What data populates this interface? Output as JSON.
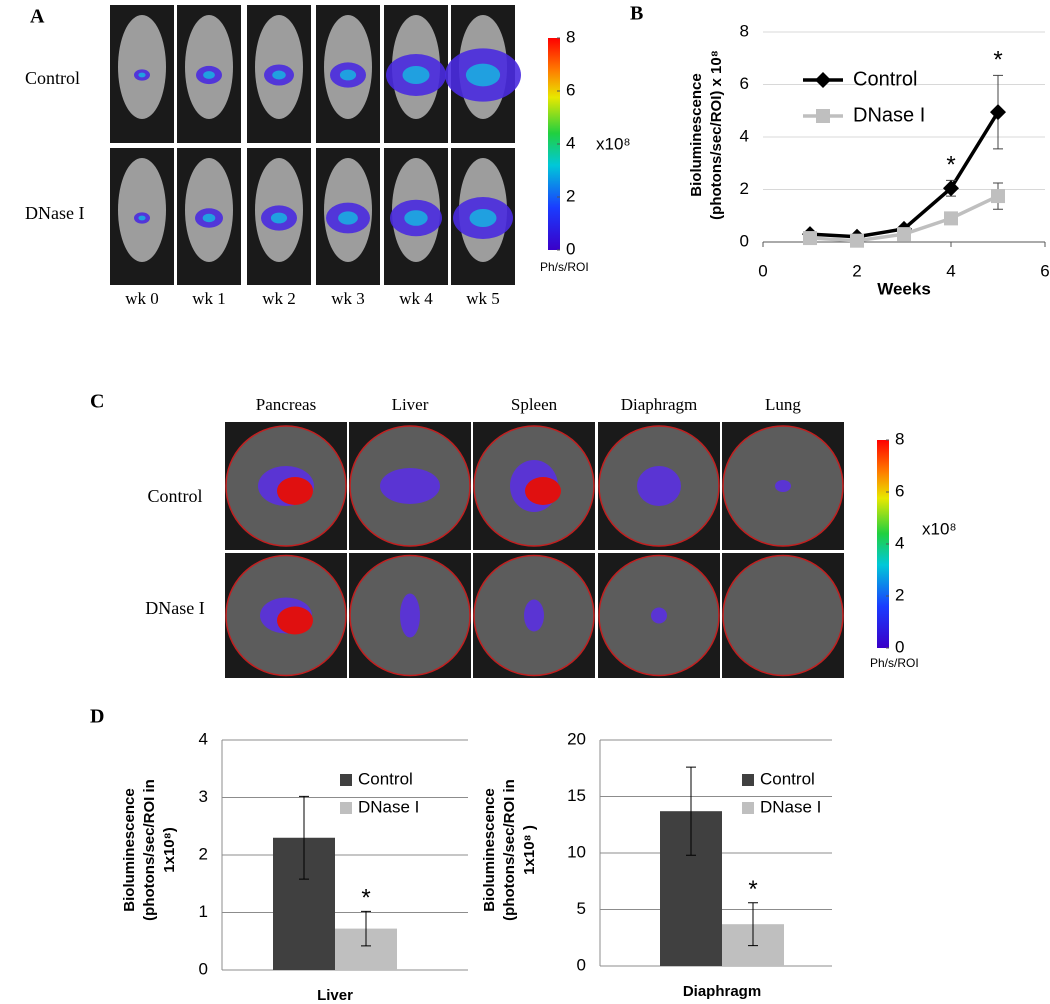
{
  "panels": {
    "A": {
      "label": "A",
      "rows": [
        "Control",
        "DNase I"
      ],
      "columns": [
        "wk 0",
        "wk 1",
        "wk 2",
        "wk 3",
        "wk 4",
        "wk 5"
      ],
      "colorbar": {
        "lim": [
          0,
          8
        ],
        "ticks": [
          0,
          2,
          4,
          6,
          8
        ],
        "scale": "x10⁸",
        "unit": "Ph/s/ROI"
      }
    },
    "C": {
      "label": "C",
      "rows": [
        "Control",
        "DNase I"
      ],
      "columns": [
        "Pancreas",
        "Liver",
        "Spleen",
        "Diaphragm",
        "Lung"
      ],
      "colorbar": {
        "lim": [
          0,
          8
        ],
        "ticks": [
          0,
          2,
          4,
          6,
          8
        ],
        "scale": "x10⁸",
        "unit": "Ph/s/ROI"
      }
    },
    "D": {
      "label": "D"
    }
  },
  "chart_data": [
    {
      "type": "line",
      "panel": "B",
      "x": [
        1,
        2,
        3,
        4,
        5
      ],
      "xlabel": "Weeks",
      "ylabel": [
        "Bioluminescence",
        "(photons/sec/ROI) x 10⁸"
      ],
      "xlim": [
        0,
        6
      ],
      "xticks": [
        0,
        2,
        4,
        6
      ],
      "ylim": [
        0,
        8
      ],
      "yticks": [
        0,
        2,
        4,
        6,
        8
      ],
      "grid": true,
      "legend": "upper left",
      "series": [
        {
          "name": "Control",
          "color": "#000000",
          "marker": "diamond",
          "values": [
            0.3,
            0.2,
            0.5,
            2.05,
            4.95
          ],
          "errors": [
            0.1,
            0.05,
            0.1,
            0.3,
            1.4
          ],
          "annotations": [
            null,
            null,
            null,
            "*",
            "*"
          ]
        },
        {
          "name": "DNase I",
          "color": "#bfbfbf",
          "marker": "square",
          "values": [
            0.15,
            0.05,
            0.3,
            0.9,
            1.75
          ],
          "errors": [
            0.1,
            0.05,
            0.1,
            0.15,
            0.5
          ]
        }
      ]
    },
    {
      "type": "bar",
      "categories": [
        "Liver"
      ],
      "ylabel": [
        "Bioluminescence",
        "(photons/sec/ROI in",
        "1x10⁸)"
      ],
      "ylim": [
        0,
        4
      ],
      "yticks": [
        0,
        1,
        2,
        3,
        4
      ],
      "grid": true,
      "legend": "upper right",
      "series": [
        {
          "name": "Control",
          "color": "#404040",
          "values": [
            2.3
          ],
          "errors": [
            0.72
          ]
        },
        {
          "name": "DNase I",
          "color": "#bfbfbf",
          "values": [
            0.72
          ],
          "errors": [
            0.3
          ],
          "annotations": [
            "*"
          ]
        }
      ]
    },
    {
      "type": "bar",
      "categories": [
        "Diaphragm"
      ],
      "ylabel": [
        "Bioluminescence",
        "(photons/sec/ROI in",
        "1x10⁸ )"
      ],
      "ylim": [
        0,
        20
      ],
      "yticks": [
        0,
        5,
        10,
        15,
        20
      ],
      "grid": true,
      "legend": "upper right",
      "series": [
        {
          "name": "Control",
          "color": "#404040",
          "values": [
            13.7
          ],
          "errors": [
            3.9
          ]
        },
        {
          "name": "DNase I",
          "color": "#bfbfbf",
          "values": [
            3.7
          ],
          "errors": [
            1.9
          ],
          "annotations": [
            "*"
          ]
        }
      ]
    }
  ]
}
